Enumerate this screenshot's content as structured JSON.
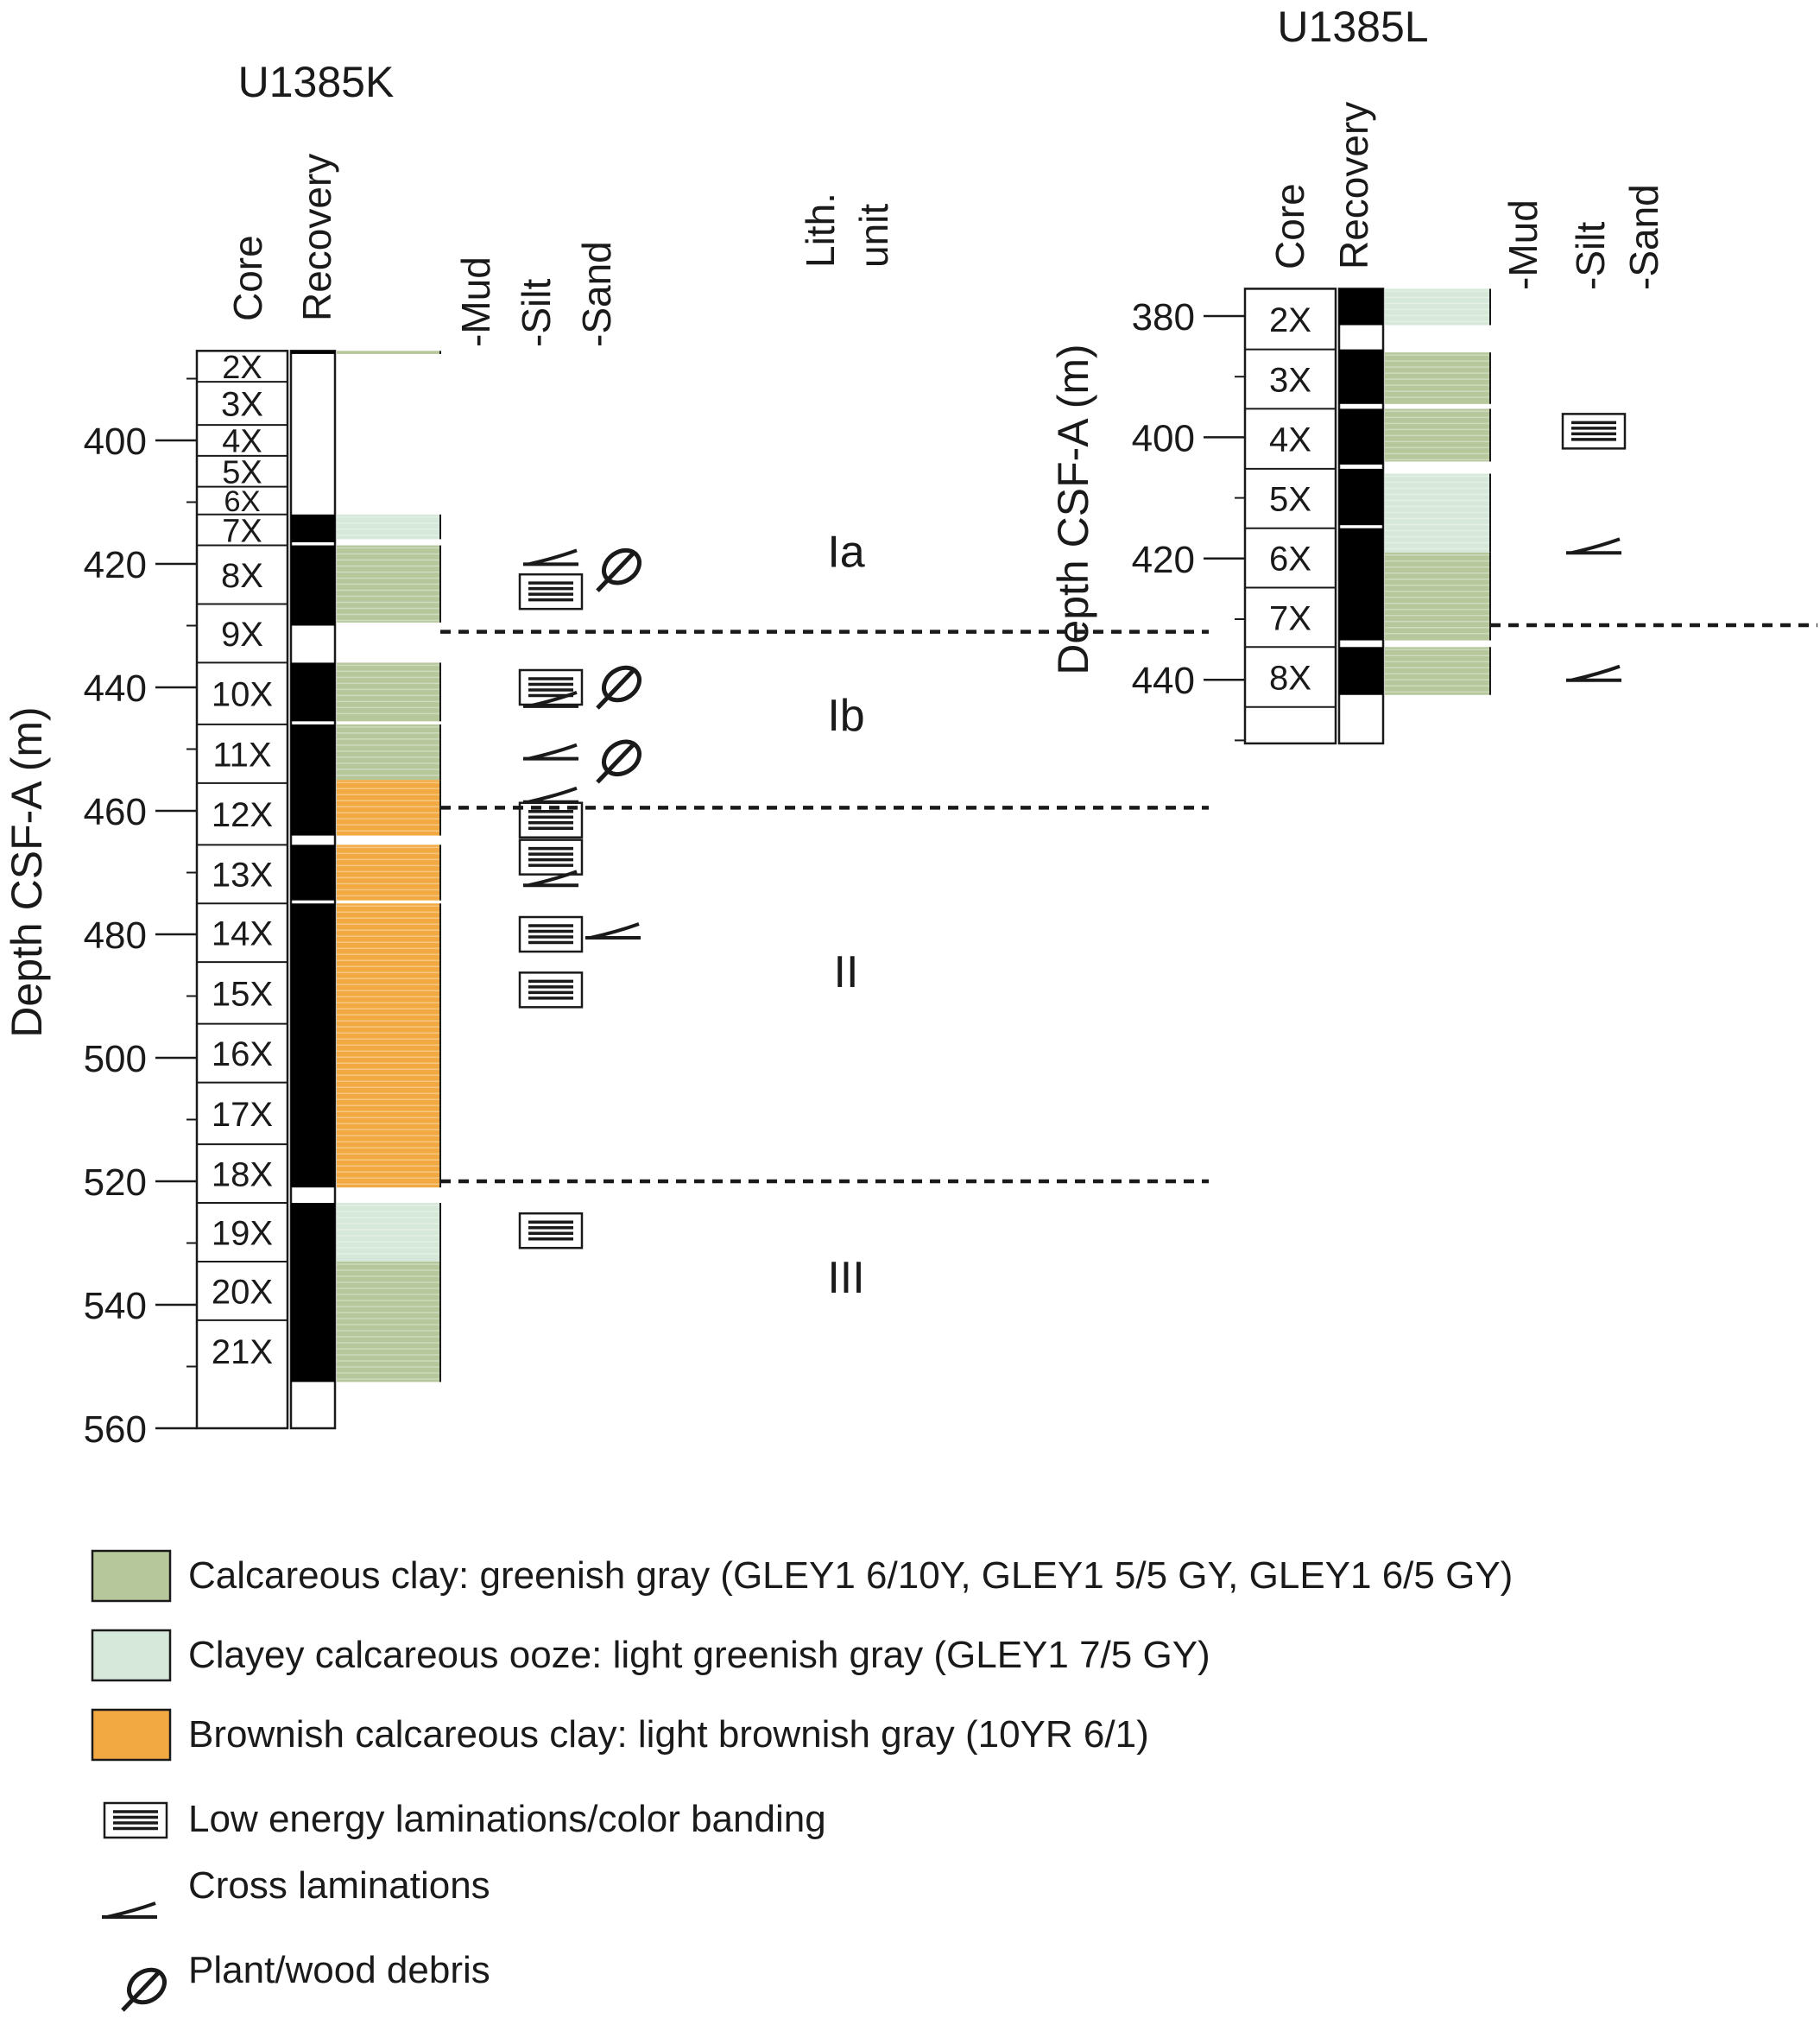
{
  "colors": {
    "greenish_gray": "#B6C79B",
    "light_greenish_gray": "#D6E8D9",
    "brownish": "#F2A941",
    "recovery_black": "#000000",
    "dashed_line": "#1a1a1a"
  },
  "column_headers": {
    "core": "Core",
    "recovery": "Recovery",
    "mud": "-Mud",
    "silt": "-Silt",
    "sand": "-Sand",
    "lith_unit_line1": "Lith.",
    "lith_unit_line2": "unit"
  },
  "site_k": {
    "title": "U1385K",
    "axis_label": "Depth CSF-A (m)",
    "depth_ticks": [
      "400",
      "420",
      "440",
      "460",
      "480",
      "500",
      "520",
      "540",
      "560"
    ],
    "depth_tick_values": [
      400,
      420,
      440,
      460,
      480,
      500,
      520,
      540,
      560
    ],
    "depth_range_m": [
      385.5,
      560
    ],
    "cores": [
      {
        "label": "2X",
        "top": 385.5,
        "bottom": 390.5
      },
      {
        "label": "3X",
        "top": 390.5,
        "bottom": 397.5
      },
      {
        "label": "4X",
        "top": 397.5,
        "bottom": 402.5
      },
      {
        "label": "5X",
        "top": 402.5,
        "bottom": 407.5
      },
      {
        "label": "6X",
        "top": 407.5,
        "bottom": 412.0
      },
      {
        "label": "7X",
        "top": 412.0,
        "bottom": 417.0
      },
      {
        "label": "8X",
        "top": 417.0,
        "bottom": 426.5
      },
      {
        "label": "9X",
        "top": 426.5,
        "bottom": 436.0
      },
      {
        "label": "10X",
        "top": 436.0,
        "bottom": 446.0
      },
      {
        "label": "11X",
        "top": 446.0,
        "bottom": 455.5
      },
      {
        "label": "12X",
        "top": 455.5,
        "bottom": 465.5
      },
      {
        "label": "13X",
        "top": 465.5,
        "bottom": 475.0
      },
      {
        "label": "14X",
        "top": 475.0,
        "bottom": 484.5
      },
      {
        "label": "15X",
        "top": 484.5,
        "bottom": 494.5
      },
      {
        "label": "16X",
        "top": 494.5,
        "bottom": 504.0
      },
      {
        "label": "17X",
        "top": 504.0,
        "bottom": 514.0
      },
      {
        "label": "18X",
        "top": 514.0,
        "bottom": 523.5
      },
      {
        "label": "19X",
        "top": 523.5,
        "bottom": 533.0
      },
      {
        "label": "20X",
        "top": 533.0,
        "bottom": 542.5
      },
      {
        "label": "21X",
        "top": 542.5,
        "bottom": 552.5
      }
    ],
    "recovery_intervals": [
      [
        385.5,
        386.0
      ],
      [
        412.0,
        416.5
      ],
      [
        417.0,
        430.0
      ],
      [
        436.0,
        445.5
      ],
      [
        446.0,
        464.0
      ],
      [
        465.5,
        474.5
      ],
      [
        475.0,
        521.0
      ],
      [
        523.5,
        552.5
      ]
    ],
    "lithology_intervals": [
      {
        "top": 385.5,
        "bottom": 386.0,
        "type": "greenish_gray"
      },
      {
        "top": 412.0,
        "bottom": 416.0,
        "type": "light_greenish_gray"
      },
      {
        "top": 417.0,
        "bottom": 429.5,
        "type": "greenish_gray"
      },
      {
        "top": 436.0,
        "bottom": 445.5,
        "type": "greenish_gray"
      },
      {
        "top": 446.0,
        "bottom": 455.0,
        "type": "greenish_gray"
      },
      {
        "top": 455.0,
        "bottom": 464.0,
        "type": "brownish"
      },
      {
        "top": 465.5,
        "bottom": 474.5,
        "type": "brownish"
      },
      {
        "top": 475.0,
        "bottom": 521.0,
        "type": "brownish"
      },
      {
        "top": 523.5,
        "bottom": 533.0,
        "type": "light_greenish_gray"
      },
      {
        "top": 533.0,
        "bottom": 552.5,
        "type": "greenish_gray"
      }
    ],
    "laminations": [
      424.5,
      440.0,
      461.5,
      467.5,
      480.0,
      489.0,
      528.0
    ],
    "cross_laminations": [
      {
        "depth": 419.5,
        "column": "silt"
      },
      {
        "depth": 442.5,
        "column": "silt"
      },
      {
        "depth": 451.0,
        "column": "silt"
      },
      {
        "depth": 458.0,
        "column": "silt"
      },
      {
        "depth": 471.5,
        "column": "silt"
      },
      {
        "depth": 480.0,
        "column": "sand"
      }
    ],
    "plant_debris": [
      421.0,
      440.0,
      452.0
    ],
    "unit_boundaries": [
      431.0,
      459.5,
      520.0
    ],
    "lith_units": [
      {
        "label": "Ia",
        "depth": 418.0
      },
      {
        "label": "Ib",
        "depth": 444.5
      },
      {
        "label": "II",
        "depth": 486.0
      },
      {
        "label": "III",
        "depth": 535.5
      }
    ]
  },
  "site_l": {
    "title": "U1385L",
    "axis_label": "Depth CSF-A (m)",
    "depth_ticks": [
      "380",
      "400",
      "420",
      "440"
    ],
    "depth_tick_values": [
      380,
      400,
      420,
      440
    ],
    "depth_range_m": [
      375.5,
      450.5
    ],
    "cores": [
      {
        "label": "2X",
        "top": 375.5,
        "bottom": 385.5
      },
      {
        "label": "3X",
        "top": 385.5,
        "bottom": 395.3
      },
      {
        "label": "4X",
        "top": 395.3,
        "bottom": 405.2
      },
      {
        "label": "5X",
        "top": 405.2,
        "bottom": 415.0
      },
      {
        "label": "6X",
        "top": 415.0,
        "bottom": 424.8
      },
      {
        "label": "7X",
        "top": 424.8,
        "bottom": 434.6
      },
      {
        "label": "8X",
        "top": 434.6,
        "bottom": 444.5
      },
      {
        "label": "",
        "top": 444.5,
        "bottom": 450.5
      }
    ],
    "recovery_intervals": [
      [
        375.5,
        381.5
      ],
      [
        385.5,
        394.5
      ],
      [
        395.3,
        404.5
      ],
      [
        405.2,
        414.5
      ],
      [
        415.0,
        433.5
      ],
      [
        434.6,
        442.5
      ]
    ],
    "lithology_intervals": [
      {
        "top": 375.5,
        "bottom": 381.5,
        "type": "light_greenish_gray"
      },
      {
        "top": 386.0,
        "bottom": 394.5,
        "type": "greenish_gray"
      },
      {
        "top": 395.3,
        "bottom": 404.0,
        "type": "greenish_gray"
      },
      {
        "top": 406.0,
        "bottom": 419.0,
        "type": "light_greenish_gray"
      },
      {
        "top": 419.0,
        "bottom": 433.5,
        "type": "greenish_gray"
      },
      {
        "top": 434.6,
        "bottom": 442.5,
        "type": "greenish_gray"
      }
    ],
    "laminations": [
      399.0
    ],
    "cross_laminations": [
      {
        "depth": 418.5,
        "column": "silt"
      },
      {
        "depth": 439.5,
        "column": "silt"
      }
    ],
    "unit_boundaries": [
      431.0
    ]
  },
  "legend": {
    "items": [
      {
        "label": "Calcareous clay: greenish gray (GLEY1 6/10Y, GLEY1 5/5 GY, GLEY1 6/5 GY)",
        "symbol": "swatch",
        "color": "#B6C79B"
      },
      {
        "label": "Clayey calcareous ooze: light greenish gray (GLEY1 7/5 GY)",
        "symbol": "swatch",
        "color": "#D6E8D9"
      },
      {
        "label": "Brownish calcareous clay: light brownish gray (10YR 6/1)",
        "symbol": "swatch",
        "color": "#F2A941"
      },
      {
        "label": "Low energy laminations/color banding",
        "symbol": "laminations"
      },
      {
        "label": "Cross laminations",
        "symbol": "cross"
      },
      {
        "label": "Plant/wood debris",
        "symbol": "plant"
      }
    ]
  }
}
